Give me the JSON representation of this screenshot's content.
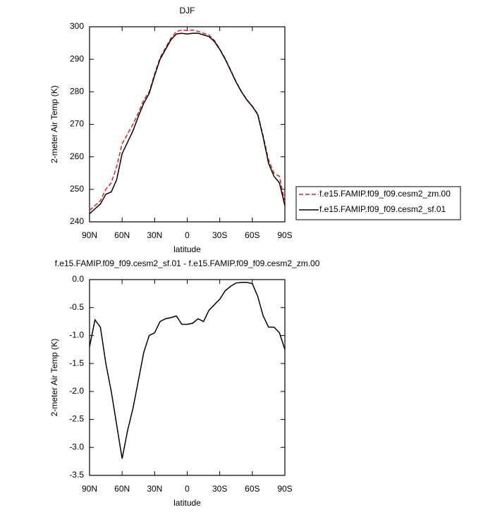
{
  "chart_data": [
    {
      "type": "line",
      "title": "DJF",
      "xlabel": "latitude",
      "ylabel": "2-meter Air Temp (K)",
      "x": [
        90,
        85,
        80,
        75,
        70,
        65,
        60,
        55,
        50,
        45,
        40,
        35,
        30,
        25,
        20,
        15,
        10,
        5,
        0,
        -5,
        -10,
        -15,
        -20,
        -25,
        -30,
        -35,
        -40,
        -45,
        -50,
        -55,
        -60,
        -65,
        -70,
        -75,
        -80,
        -85,
        -90
      ],
      "series": [
        {
          "name": "f.e15.FAMIP.f09_f09.cesm2_zm.00",
          "color": "#e0201b",
          "dash": true,
          "values": [
            243.5,
            245,
            246.5,
            250,
            252,
            257,
            264,
            267,
            270,
            273.5,
            277.5,
            280,
            285.5,
            290.5,
            293.5,
            296.5,
            298.5,
            299,
            298.8,
            299,
            298.6,
            298,
            297.5,
            295.8,
            293.2,
            290.2,
            286.7,
            283.1,
            280.1,
            277.6,
            275.6,
            273.2,
            266.5,
            259,
            255,
            254,
            246
          ]
        },
        {
          "name": "f.e15.FAMIP.f09_f09.cesm2_sf.01",
          "color": "#000000",
          "dash": false,
          "values": [
            242.5,
            244,
            245.5,
            248.5,
            249.2,
            253,
            261,
            264.5,
            268,
            272.5,
            276.5,
            279.5,
            285,
            290,
            293,
            296,
            297.8,
            298,
            297.8,
            298,
            298,
            297.5,
            297,
            295.5,
            293,
            290,
            286.5,
            283,
            280,
            277.5,
            275.5,
            273,
            266,
            258,
            254,
            252,
            245
          ]
        }
      ],
      "xlim": [
        90,
        -90
      ],
      "xticks": [
        {
          "value": 90,
          "label": "90N"
        },
        {
          "value": 60,
          "label": "60N"
        },
        {
          "value": 30,
          "label": "30N"
        },
        0,
        {
          "value": -30,
          "label": "30S"
        },
        {
          "value": -60,
          "label": "60S"
        },
        {
          "value": -90,
          "label": "90S"
        }
      ],
      "ylim": [
        240,
        300
      ],
      "yticks": [
        240,
        250,
        260,
        270,
        280,
        290,
        300
      ],
      "legend": "right"
    },
    {
      "type": "line",
      "title": "f.e15.FAMIP.f09_f09.cesm2_sf.01 - f.e15.FAMIP.f09_f09.cesm2_zm.00",
      "xlabel": "latitude",
      "ylabel": "2-meter Air Temp (K)",
      "x": [
        90,
        85,
        80,
        75,
        70,
        65,
        60,
        55,
        50,
        45,
        40,
        35,
        30,
        25,
        20,
        15,
        10,
        5,
        0,
        -5,
        -10,
        -15,
        -20,
        -25,
        -30,
        -35,
        -40,
        -45,
        -50,
        -55,
        -60,
        -65,
        -70,
        -75,
        -80,
        -85,
        -90
      ],
      "values": [
        -1.2,
        -0.72,
        -0.85,
        -1.5,
        -2.0,
        -2.6,
        -3.2,
        -2.7,
        -2.3,
        -1.8,
        -1.3,
        -1.0,
        -0.95,
        -0.75,
        -0.7,
        -0.68,
        -0.65,
        -0.8,
        -0.8,
        -0.78,
        -0.7,
        -0.75,
        -0.55,
        -0.45,
        -0.35,
        -0.2,
        -0.12,
        -0.06,
        -0.05,
        -0.05,
        -0.07,
        -0.3,
        -0.65,
        -0.85,
        -0.85,
        -0.95,
        -1.25
      ],
      "color": "#000000",
      "xlim": [
        90,
        -90
      ],
      "xticks": [
        {
          "value": 90,
          "label": "90N"
        },
        {
          "value": 60,
          "label": "60N"
        },
        {
          "value": 30,
          "label": "30N"
        },
        0,
        {
          "value": -30,
          "label": "30S"
        },
        {
          "value": -60,
          "label": "60S"
        },
        {
          "value": -90,
          "label": "90S"
        }
      ],
      "ylim": [
        -3.5,
        0
      ],
      "yticks": [
        {
          "value": -3.5,
          "label": "-3.5"
        },
        {
          "value": -3,
          "label": "-3.0"
        },
        {
          "value": -2.5,
          "label": "-2.5"
        },
        {
          "value": -2,
          "label": "-2.0"
        },
        {
          "value": -1.5,
          "label": "-1.5"
        },
        {
          "value": -1,
          "label": "-1.0"
        },
        {
          "value": -0.5,
          "label": "-0.5"
        },
        {
          "value": 0,
          "label": "0.0"
        }
      ]
    }
  ]
}
